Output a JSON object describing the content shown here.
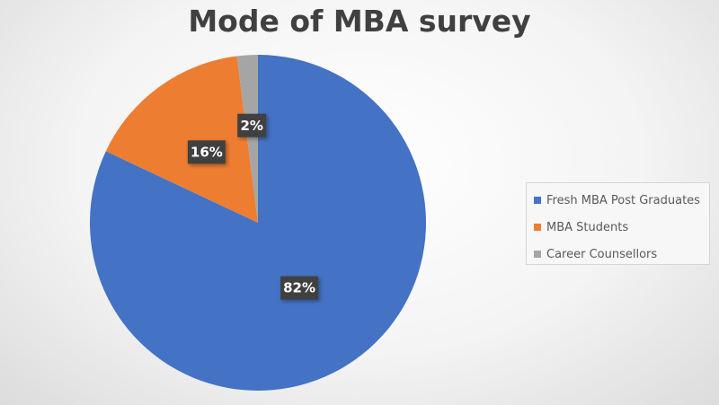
{
  "chart_data": {
    "type": "pie",
    "title": "Mode of MBA survey",
    "slices": [
      {
        "label": "Fresh MBA Post Graduates",
        "value": 82,
        "display": "82%",
        "color": "#4472C4"
      },
      {
        "label": "MBA Students",
        "value": 16,
        "display": "16%",
        "color": "#ED7D31"
      },
      {
        "label": "Career Counsellors",
        "value": 2,
        "display": "2%",
        "color": "#A5A5A5"
      }
    ],
    "legend_position": "right"
  }
}
